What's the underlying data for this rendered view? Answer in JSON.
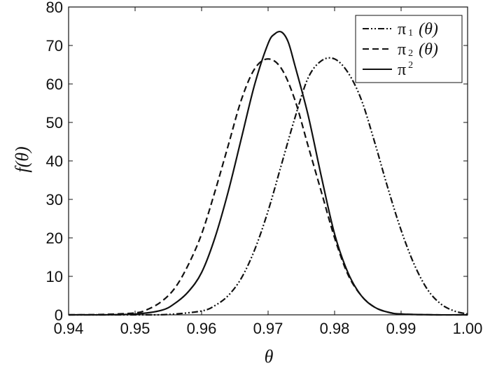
{
  "chart_data": {
    "type": "line",
    "title": "",
    "xlabel": "θ",
    "ylabel": "f(θ)",
    "xlim": [
      0.94,
      1.0
    ],
    "ylim": [
      0,
      80
    ],
    "xticks": [
      "0.94",
      "0.95",
      "0.96",
      "0.97",
      "0.98",
      "0.99",
      "1.00"
    ],
    "yticks": [
      "0",
      "10",
      "20",
      "30",
      "40",
      "50",
      "60",
      "70",
      "80"
    ],
    "grid": false,
    "legend_position": "top-right",
    "series": [
      {
        "name": "π1(θ)",
        "legend": {
          "symbol": "π",
          "sub": "1",
          "arg": "(θ)"
        },
        "style": "dashdot",
        "color": "#111111",
        "x": [
          0.94,
          0.945,
          0.95,
          0.955,
          0.96,
          0.962,
          0.964,
          0.966,
          0.968,
          0.97,
          0.972,
          0.974,
          0.976,
          0.978,
          0.98,
          0.982,
          0.984,
          0.986,
          0.988,
          0.99,
          0.992,
          0.994,
          0.996,
          0.998,
          1.0
        ],
        "y": [
          0,
          0,
          0,
          0.1,
          1,
          2.4,
          5,
          9.6,
          17,
          27,
          39,
          51,
          61.5,
          66,
          66.5,
          63,
          56,
          45,
          33,
          22,
          13,
          6.5,
          2.8,
          1,
          0.2
        ]
      },
      {
        "name": "π2(θ)",
        "legend": {
          "symbol": "π",
          "sub": "2",
          "arg": "(θ)"
        },
        "style": "dashed",
        "color": "#111111",
        "x": [
          0.94,
          0.945,
          0.95,
          0.952,
          0.954,
          0.956,
          0.958,
          0.96,
          0.962,
          0.964,
          0.966,
          0.968,
          0.97,
          0.972,
          0.974,
          0.976,
          0.978,
          0.98,
          0.982,
          0.984,
          0.986,
          0.988,
          0.99,
          0.995,
          1.0
        ],
        "y": [
          0,
          0.1,
          0.5,
          1.5,
          3.5,
          7,
          13,
          21,
          32,
          44,
          56,
          64,
          66.5,
          64,
          56,
          44,
          32,
          20,
          10.5,
          5,
          2,
          0.7,
          0.2,
          0,
          0
        ]
      },
      {
        "name": "π2(θ)",
        "legend": {
          "symbol": "π",
          "sup": "2",
          "arg": ""
        },
        "style": "solid",
        "color": "#111111",
        "x": [
          0.94,
          0.945,
          0.95,
          0.954,
          0.956,
          0.958,
          0.96,
          0.962,
          0.964,
          0.966,
          0.968,
          0.97,
          0.971,
          0.972,
          0.973,
          0.974,
          0.976,
          0.978,
          0.98,
          0.982,
          0.984,
          0.986,
          0.988,
          0.99,
          0.995,
          1.0
        ],
        "y": [
          0,
          0,
          0.2,
          1.2,
          3,
          6,
          11,
          20,
          32,
          46,
          60,
          70.5,
          73,
          73.5,
          71,
          65,
          52,
          36,
          21,
          11,
          5,
          2,
          0.7,
          0.2,
          0,
          0
        ]
      }
    ]
  }
}
